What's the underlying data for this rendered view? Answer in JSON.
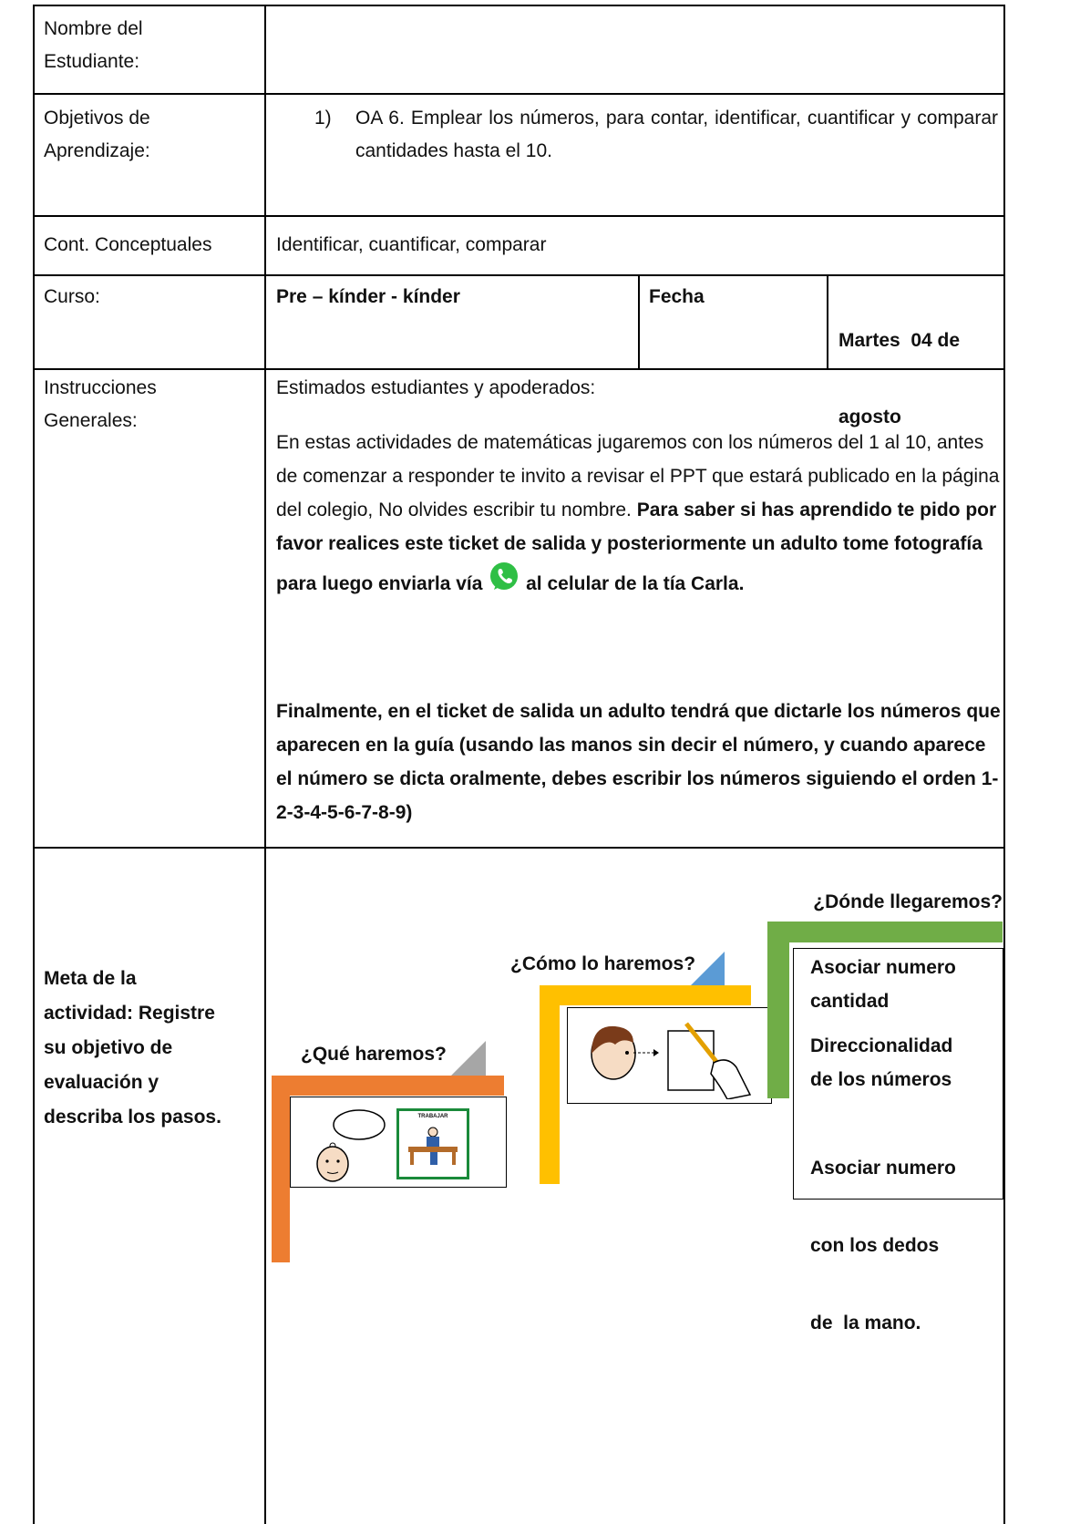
{
  "student": {
    "label_lines": [
      "Nombre del",
      "Estudiante:"
    ]
  },
  "objectives": {
    "label_lines": [
      "Objetivos de",
      "Aprendizaje:"
    ],
    "items": [
      {
        "number": "1)",
        "text": "OA 6. Emplear los números, para contar, identificar, cuantificar y comparar cantidades hasta el 10."
      }
    ]
  },
  "contents": {
    "label": "Cont. Conceptuales",
    "text": "Identificar, cuantificar, comparar"
  },
  "course": {
    "label": "Curso:",
    "value": "Pre – kínder - kínder",
    "date_label": "Fecha",
    "date_lines": [
      "Martes  04 de",
      "agosto"
    ]
  },
  "instructions": {
    "label_lines": [
      "Instrucciones",
      "Generales:"
    ],
    "greeting": "Estimados estudiantes y apoderados:",
    "paragraph": {
      "text": "En estas actividades de matemáticas jugaremos con los números del 1 al 10, antes de comenzar a responder te invito a revisar el PPT que estará publicado en la página del colegio, No olvides escribir tu nombre.",
      "bold_before_icon": "Para saber si has aprendido te pido por favor realices este ticket de salida y posteriormente un adulto tome fotografía para luego enviarla vía",
      "bold_after_icon": "al celular de la tía Carla."
    },
    "closing": "Finalmente, en el ticket de salida un adulto tendrá que dictarle los números que aparecen en la guía (usando las manos sin decir el número, y cuando aparece el número se dicta oralmente, debes escribir los números siguiendo el orden 1-2-3-4-5-6-7-8-9)"
  },
  "goal": {
    "label_lines": [
      "Meta de la",
      "actividad: Registre",
      "su objetivo de",
      "evaluación y",
      "describa los pasos."
    ],
    "steps": [
      {
        "title": "¿Qué haremos?",
        "pictogram": "TRABAJAR"
      },
      {
        "title": "¿Cómo lo haremos?"
      },
      {
        "title": "¿Dónde llegaremos?",
        "items": [
          [
            "Asociar numero",
            "cantidad"
          ],
          [
            "Direccionalidad",
            "de los números"
          ],
          [
            "Asociar numero",
            "con los dedos",
            "de  la mano."
          ]
        ]
      }
    ]
  }
}
